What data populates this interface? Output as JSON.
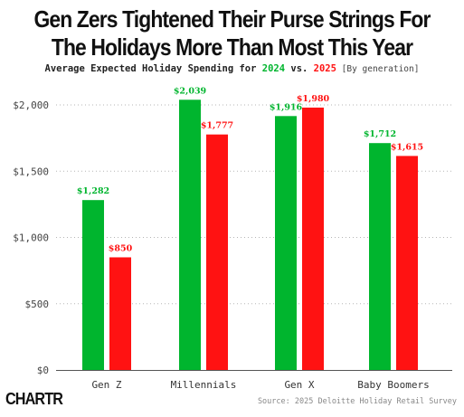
{
  "title_line1": "Gen Zers Tightened Their Purse Strings For",
  "title_line2": "The Holidays More Than Most This Year",
  "subtitle": {
    "prefix": "Average Expected Holiday Spending for ",
    "year1": "2024",
    "mid": " vs. ",
    "year2": "2025",
    "note": " [By generation]"
  },
  "brand": "CHARTR",
  "source": "Source: 2025 Deloitte Holiday Retail Survey",
  "colors": {
    "y2024": "#00b52e",
    "y2025": "#ff1212"
  },
  "chart_data": {
    "type": "bar",
    "title": "Gen Zers Tightened Their Purse Strings For The Holidays More Than Most This Year",
    "subtitle": "Average Expected Holiday Spending for 2024 vs. 2025 [By generation]",
    "categories": [
      "Gen Z",
      "Millennials",
      "Gen X",
      "Baby Boomers"
    ],
    "series": [
      {
        "name": "2024",
        "color": "#00b52e",
        "values": [
          1282,
          2039,
          1916,
          1712
        ],
        "labels": [
          "$1,282",
          "$2,039",
          "$1,916",
          "$1,712"
        ]
      },
      {
        "name": "2025",
        "color": "#ff1212",
        "values": [
          850,
          1777,
          1980,
          1615
        ],
        "labels": [
          "$850",
          "$1,777",
          "$1,980",
          "$1,615"
        ]
      }
    ],
    "ylim": [
      0,
      2100
    ],
    "yticks": [
      0,
      500,
      1000,
      1500,
      2000
    ],
    "ytick_labels": [
      "$0",
      "$500",
      "$1,000",
      "$1,500",
      "$2,000"
    ],
    "grid": "horizontal-dotted",
    "legend": "in-subtitle"
  }
}
